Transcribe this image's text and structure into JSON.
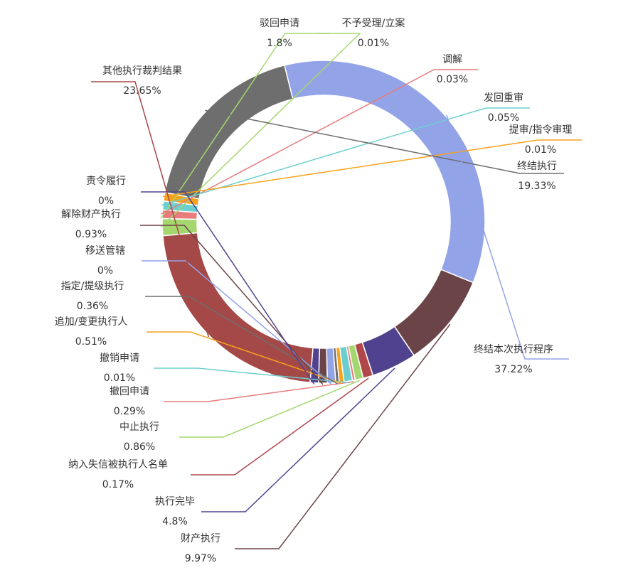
{
  "chart_data": {
    "type": "pie",
    "variant": "donut",
    "title": "",
    "slices": [
      {
        "label": "驳回申请",
        "value": 1.8,
        "display": "1.8%",
        "color": "#a4d86e"
      },
      {
        "label": "不予受理/立案",
        "value": 0.01,
        "display": "0.01%",
        "color": "#a4d86e"
      },
      {
        "label": "调解",
        "value": 0.03,
        "display": "0.03%",
        "color": "#e87c7c"
      },
      {
        "label": "发回重审",
        "value": 0.05,
        "display": "0.05%",
        "color": "#6ccfcf"
      },
      {
        "label": "提审/指令审理",
        "value": 0.01,
        "display": "0.01%",
        "color": "#f7a21b"
      },
      {
        "label": "终结执行",
        "value": 19.33,
        "display": "19.33%",
        "color": "#6e6e6e"
      },
      {
        "label": "终结本次执行程序",
        "value": 37.22,
        "display": "37.22%",
        "color": "#93a3e8"
      },
      {
        "label": "财产执行",
        "value": 9.97,
        "display": "9.97%",
        "color": "#6b4447"
      },
      {
        "label": "执行完毕",
        "value": 4.8,
        "display": "4.8%",
        "color": "#51428f"
      },
      {
        "label": "纳入失信被执行人名单",
        "value": 0.17,
        "display": "0.17%",
        "color": "#b0474b"
      },
      {
        "label": "中止执行",
        "value": 0.86,
        "display": "0.86%",
        "color": "#a4d86e"
      },
      {
        "label": "撤回申请",
        "value": 0.29,
        "display": "0.29%",
        "color": "#e87c7c"
      },
      {
        "label": "撤销申请",
        "value": 0.01,
        "display": "0.01%",
        "color": "#6ccfcf"
      },
      {
        "label": "追加/变更执行人",
        "value": 0.51,
        "display": "0.51%",
        "color": "#f7a21b"
      },
      {
        "label": "指定/提级执行",
        "value": 0.36,
        "display": "0.36%",
        "color": "#6e6e6e"
      },
      {
        "label": "移送管辖",
        "value": 0,
        "display": "0%",
        "color": "#93a3e8"
      },
      {
        "label": "解除财产执行",
        "value": 0.93,
        "display": "0.93%",
        "color": "#6b4447"
      },
      {
        "label": "责令履行",
        "value": 0,
        "display": "0%",
        "color": "#51428f"
      },
      {
        "label": "其他执行裁判结果",
        "value": 23.65,
        "display": "23.65%",
        "color": "#a54848"
      }
    ]
  }
}
